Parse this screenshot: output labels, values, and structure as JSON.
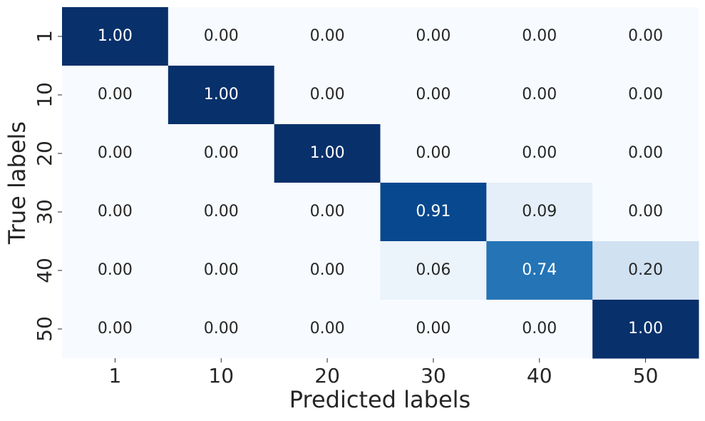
{
  "chart_data": {
    "type": "heatmap",
    "xlabel": "Predicted labels",
    "ylabel": "True labels",
    "x_categories": [
      "1",
      "10",
      "20",
      "30",
      "40",
      "50"
    ],
    "y_categories": [
      "1",
      "10",
      "20",
      "30",
      "40",
      "50"
    ],
    "values": [
      [
        1,
        0,
        0,
        0,
        0,
        0
      ],
      [
        0,
        1,
        0,
        0,
        0,
        0
      ],
      [
        0,
        0,
        1,
        0,
        0,
        0
      ],
      [
        0,
        0,
        0,
        0.91,
        0.09,
        0
      ],
      [
        0,
        0,
        0,
        0.06,
        0.74,
        0.2
      ],
      [
        0,
        0,
        0,
        0,
        0,
        1
      ]
    ],
    "value_labels": [
      [
        "1.00",
        "0.00",
        "0.00",
        "0.00",
        "0.00",
        "0.00"
      ],
      [
        "0.00",
        "1.00",
        "0.00",
        "0.00",
        "0.00",
        "0.00"
      ],
      [
        "0.00",
        "0.00",
        "1.00",
        "0.00",
        "0.00",
        "0.00"
      ],
      [
        "0.00",
        "0.00",
        "0.00",
        "0.91",
        "0.09",
        "0.00"
      ],
      [
        "0.00",
        "0.00",
        "0.00",
        "0.06",
        "0.74",
        "0.20"
      ],
      [
        "0.00",
        "0.00",
        "0.00",
        "0.00",
        "0.00",
        "1.00"
      ]
    ],
    "colormap": "Blues",
    "zlim": [
      0,
      1
    ]
  }
}
